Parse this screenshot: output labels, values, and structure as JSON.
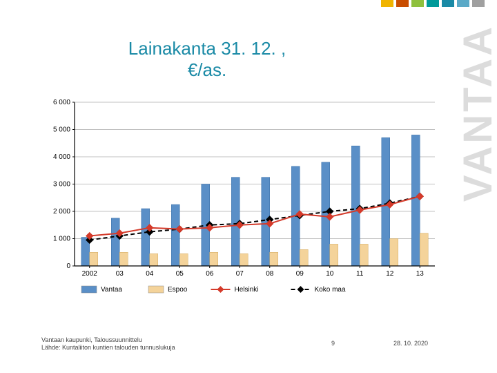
{
  "title_line1": "Lainakanta 31. 12. ,",
  "title_line2": "€/as.",
  "watermark": "VANTAA",
  "top_stripe_colors": [
    "#f0b400",
    "#c94d00",
    "#8fc13e",
    "#009a9a",
    "#1a8aa6",
    "#5aa9c7",
    "#a0a0a0"
  ],
  "footer": {
    "line1": "Vantaan kaupunki, Taloussuunnittelu",
    "line2": "Lähde: Kuntaliiton kuntien talouden tunnuslukuja",
    "page": "9",
    "date": "28. 10. 2020"
  },
  "chart": {
    "type": "grouped-bar+lines",
    "background_color": "#ffffff",
    "grid_color": "#c0c0c0",
    "axis_color": "#000000",
    "tick_font_size": 10,
    "tick_color": "#000000",
    "categories": [
      "2002",
      "03",
      "04",
      "05",
      "06",
      "07",
      "08",
      "09",
      "10",
      "11",
      "12",
      "13"
    ],
    "ylim": [
      0,
      6000
    ],
    "ytick_step": 1000,
    "yticks": [
      "0",
      "1 000",
      "2 000",
      "3 000",
      "4 000",
      "5 000",
      "6 000"
    ],
    "bar_gap": 0.45,
    "series": {
      "vantaa": {
        "label": "Vantaa",
        "type": "bar",
        "color": "#5a8fc7",
        "values": [
          1050,
          1750,
          2100,
          2250,
          3000,
          3250,
          3250,
          3650,
          3800,
          4400,
          4700,
          4800
        ]
      },
      "espoo": {
        "label": "Espoo",
        "type": "bar",
        "color": "#f4d39a",
        "values": [
          500,
          500,
          450,
          450,
          500,
          450,
          500,
          600,
          800,
          800,
          1000,
          1200
        ]
      },
      "helsinki": {
        "label": "Helsinki",
        "type": "line",
        "color": "#d43a2a",
        "marker": "diamond",
        "marker_size": 5,
        "line_width": 2,
        "values": [
          1100,
          1200,
          1400,
          1350,
          1400,
          1500,
          1550,
          1900,
          1800,
          2050,
          2250,
          2550
        ]
      },
      "koko_maa": {
        "label": "Koko maa",
        "type": "line",
        "color": "#000000",
        "marker": "diamond",
        "marker_size": 5,
        "line_width": 2,
        "dash": "6,4",
        "values": [
          950,
          1100,
          1250,
          1350,
          1500,
          1550,
          1700,
          1850,
          2000,
          2100,
          2300,
          2550
        ]
      }
    },
    "legend": {
      "position": "bottom",
      "font_size": 10,
      "items": [
        "vantaa",
        "espoo",
        "helsinki",
        "koko_maa"
      ]
    }
  }
}
